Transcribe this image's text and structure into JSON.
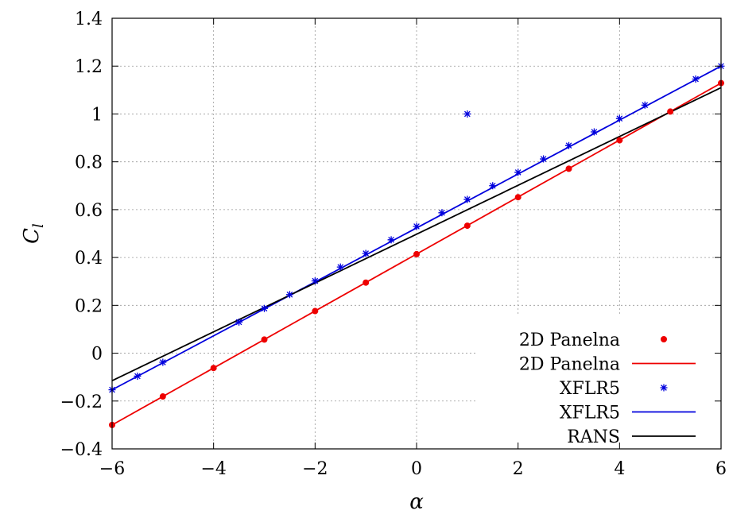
{
  "chart_data": {
    "type": "line",
    "xlabel": "α",
    "ylabel": "C_l",
    "xlim": [
      -6,
      6
    ],
    "ylim": [
      -0.4,
      1.4
    ],
    "x_ticks": [
      -6,
      -4,
      -2,
      0,
      2,
      4,
      6
    ],
    "x_tick_labels": [
      "−6",
      "−4",
      "−2",
      "0",
      "2",
      "4",
      "6"
    ],
    "y_ticks": [
      -0.4,
      -0.2,
      0,
      0.2,
      0.4,
      0.6,
      0.8,
      1,
      1.2,
      1.4
    ],
    "y_tick_labels": [
      "−0.4",
      "−0.2",
      "0",
      "0.2",
      "0.4",
      "0.6",
      "0.8",
      "1",
      "1.2",
      "1.4"
    ],
    "grid": true,
    "legend_position": "bottom-right",
    "series": [
      {
        "name": "2D Panelna",
        "style": "points",
        "marker": "dot",
        "color": "#ee0000",
        "x": [
          -6,
          -5,
          -4,
          -3,
          -2,
          -1,
          0,
          1,
          2,
          3,
          4,
          5,
          6
        ],
        "y": [
          -0.3,
          -0.181,
          -0.062,
          0.057,
          0.176,
          0.295,
          0.414,
          0.533,
          0.652,
          0.771,
          0.89,
          1.01,
          1.129
        ]
      },
      {
        "name": "2D Panelna",
        "style": "line",
        "color": "#ee0000",
        "x": [
          -6,
          6
        ],
        "y": [
          -0.3,
          1.129
        ]
      },
      {
        "name": "XFLR5",
        "style": "points",
        "marker": "star",
        "color": "#0000dd",
        "x": [
          -6,
          -5.5,
          -5,
          -3.5,
          -3,
          -2.5,
          -2,
          -1.5,
          -1,
          -0.5,
          0,
          0.5,
          1,
          1,
          1.5,
          2,
          2.5,
          3,
          3.5,
          4,
          4.5,
          5.5,
          6
        ],
        "y": [
          -0.153,
          -0.096,
          -0.038,
          0.13,
          0.187,
          0.245,
          0.302,
          0.36,
          0.417,
          0.474,
          0.53,
          0.587,
          0.643,
          1.0,
          0.7,
          0.756,
          0.812,
          0.868,
          0.925,
          0.981,
          1.037,
          1.146,
          1.2
        ]
      },
      {
        "name": "XFLR5",
        "style": "line",
        "color": "#0000dd",
        "x": [
          -6,
          6
        ],
        "y": [
          -0.153,
          1.2
        ]
      },
      {
        "name": "RANS",
        "style": "line",
        "color": "#000000",
        "x": [
          -6,
          6
        ],
        "y": [
          -0.115,
          1.11
        ]
      }
    ]
  }
}
